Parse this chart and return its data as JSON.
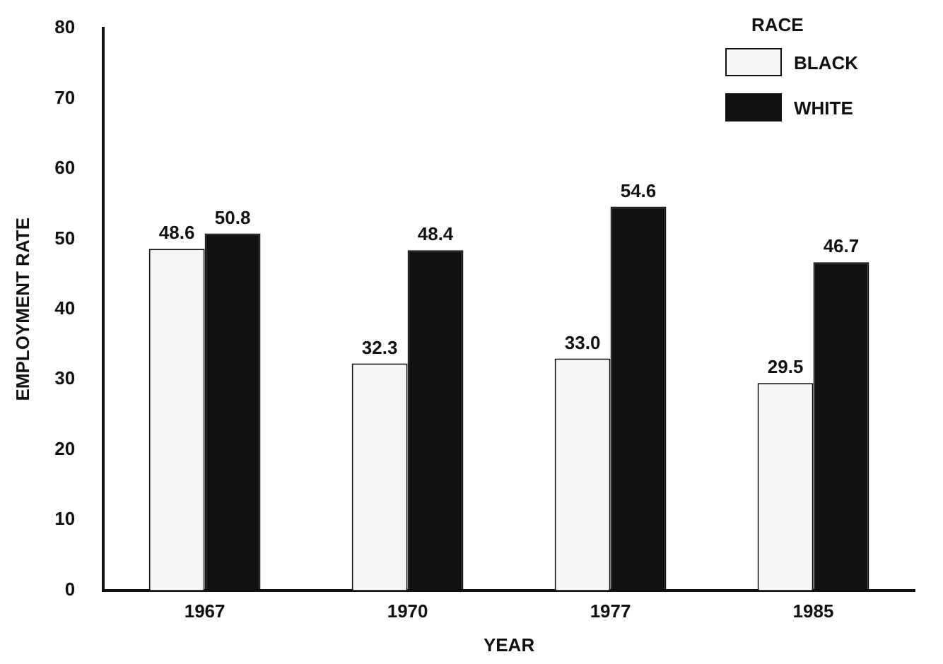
{
  "chart_data": {
    "type": "bar",
    "xlabel": "YEAR",
    "ylabel": "EMPLOYMENT RATE",
    "legend_title": "RACE",
    "categories": [
      "1967",
      "1970",
      "1977",
      "1985"
    ],
    "series": [
      {
        "name": "BLACK",
        "color": "#f7f7f7",
        "values": [
          48.6,
          32.3,
          33.0,
          29.5
        ],
        "value_labels": [
          "48.6",
          "32.3",
          "33.0",
          "29.5"
        ]
      },
      {
        "name": "WHITE",
        "color": "#111111",
        "values": [
          50.8,
          48.4,
          54.6,
          46.7
        ],
        "value_labels": [
          "50.8",
          "48.4",
          "54.6",
          "46.7"
        ]
      }
    ],
    "ylim": [
      0,
      80
    ],
    "yticks": [
      0,
      10,
      20,
      30,
      40,
      50,
      60,
      70,
      80
    ],
    "grid": false,
    "legend": "top right"
  }
}
